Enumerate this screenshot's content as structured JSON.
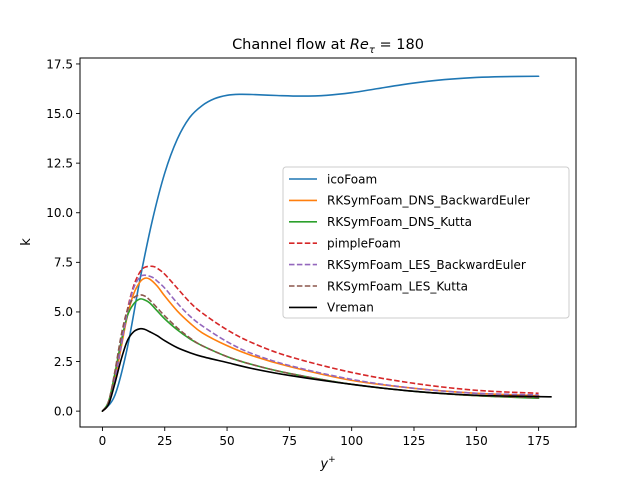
{
  "chart_data": {
    "type": "line",
    "title": {
      "prefix": "Channel flow at ",
      "symbol": "Re",
      "subscript": "τ",
      "suffix": " = 180"
    },
    "xlabel": {
      "symbol": "y",
      "superscript": "+"
    },
    "ylabel": "k",
    "xlim": [
      -9,
      190
    ],
    "ylim": [
      -0.8,
      17.8
    ],
    "xticks": [
      0,
      25,
      50,
      75,
      100,
      125,
      150,
      175
    ],
    "yticks": [
      0.0,
      2.5,
      5.0,
      7.5,
      10.0,
      12.5,
      15.0,
      17.5
    ],
    "xtick_labels": [
      "0",
      "25",
      "50",
      "75",
      "100",
      "125",
      "150",
      "175"
    ],
    "ytick_labels": [
      "0.0",
      "2.5",
      "5.0",
      "7.5",
      "10.0",
      "12.5",
      "15.0",
      "17.5"
    ],
    "grid": false,
    "legend_position": "center-right",
    "series": [
      {
        "name": "icoFoam",
        "color": "#1f77b4",
        "dash": "solid",
        "x": [
          0,
          5,
          10,
          15,
          20,
          25,
          30,
          35,
          40,
          45,
          50,
          55,
          60,
          70,
          80,
          90,
          100,
          110,
          120,
          130,
          140,
          150,
          160,
          175
        ],
        "y": [
          0.0,
          0.8,
          3.2,
          6.6,
          9.6,
          12.0,
          13.7,
          14.8,
          15.4,
          15.75,
          15.92,
          15.97,
          15.96,
          15.91,
          15.88,
          15.92,
          16.05,
          16.25,
          16.45,
          16.62,
          16.74,
          16.82,
          16.86,
          16.88
        ]
      },
      {
        "name": "RKSymFoam_DNS_BackwardEuler",
        "color": "#ff7f0e",
        "dash": "solid",
        "x": [
          0,
          2.5,
          5,
          7.5,
          10,
          12.5,
          15,
          17,
          19,
          22,
          25,
          30,
          35,
          40,
          50,
          60,
          75,
          100,
          125,
          150,
          175
        ],
        "y": [
          0.0,
          0.4,
          1.6,
          3.2,
          4.8,
          5.9,
          6.5,
          6.7,
          6.65,
          6.3,
          5.8,
          5.05,
          4.45,
          3.95,
          3.3,
          2.8,
          2.25,
          1.55,
          1.15,
          0.9,
          0.78
        ]
      },
      {
        "name": "RKSymFoam_DNS_Kutta",
        "color": "#2ca02c",
        "dash": "solid",
        "x": [
          0,
          2.5,
          5,
          7.5,
          10,
          12.5,
          15,
          17,
          19,
          22,
          25,
          30,
          35,
          40,
          50,
          60,
          75,
          100,
          125,
          150,
          175
        ],
        "y": [
          0.0,
          0.5,
          1.9,
          3.5,
          4.8,
          5.4,
          5.65,
          5.6,
          5.45,
          5.05,
          4.65,
          4.1,
          3.65,
          3.3,
          2.75,
          2.35,
          1.9,
          1.35,
          1.0,
          0.78,
          0.65
        ]
      },
      {
        "name": "pimpleFoam",
        "color": "#d62728",
        "dash": "dashed",
        "x": [
          0,
          2.5,
          5,
          7.5,
          10,
          12.5,
          15,
          17,
          20,
          22,
          25,
          30,
          35,
          40,
          50,
          60,
          75,
          100,
          125,
          150,
          175
        ],
        "y": [
          0.0,
          0.4,
          1.6,
          3.3,
          5.1,
          6.3,
          7.0,
          7.25,
          7.3,
          7.2,
          6.9,
          6.2,
          5.5,
          4.95,
          4.1,
          3.45,
          2.75,
          1.95,
          1.4,
          1.05,
          0.9
        ]
      },
      {
        "name": "RKSymFoam_LES_BackwardEuler",
        "color": "#9467bd",
        "dash": "dashed",
        "x": [
          0,
          2.5,
          5,
          7.5,
          10,
          12.5,
          15,
          17,
          20,
          22,
          25,
          30,
          35,
          40,
          50,
          60,
          75,
          100,
          125,
          150,
          175
        ],
        "y": [
          0.0,
          0.4,
          1.6,
          3.3,
          5.0,
          6.2,
          6.75,
          6.85,
          6.75,
          6.55,
          6.2,
          5.45,
          4.8,
          4.3,
          3.5,
          2.9,
          2.3,
          1.6,
          1.15,
          0.9,
          0.82
        ]
      },
      {
        "name": "RKSymFoam_LES_Kutta",
        "color": "#8c564b",
        "dash": "dashed",
        "x": [
          0,
          2.5,
          5,
          7.5,
          10,
          12.5,
          15,
          17,
          19,
          22,
          25,
          30,
          35,
          40,
          50,
          60,
          75,
          100,
          125,
          150,
          175
        ],
        "y": [
          0.0,
          0.5,
          2.0,
          3.8,
          5.1,
          5.7,
          5.85,
          5.8,
          5.6,
          5.2,
          4.8,
          4.2,
          3.7,
          3.3,
          2.75,
          2.35,
          1.9,
          1.35,
          1.0,
          0.78,
          0.68
        ]
      },
      {
        "name": "Vreman",
        "color": "#000000",
        "dash": "solid",
        "x": [
          0,
          2.5,
          5,
          7.5,
          10,
          12.5,
          15,
          17,
          19,
          22,
          25,
          30,
          35,
          40,
          50,
          60,
          75,
          100,
          125,
          150,
          180
        ],
        "y": [
          0.0,
          0.35,
          1.4,
          2.6,
          3.55,
          4.0,
          4.15,
          4.12,
          4.0,
          3.8,
          3.55,
          3.2,
          2.95,
          2.75,
          2.45,
          2.15,
          1.8,
          1.35,
          1.0,
          0.8,
          0.72
        ]
      }
    ]
  }
}
